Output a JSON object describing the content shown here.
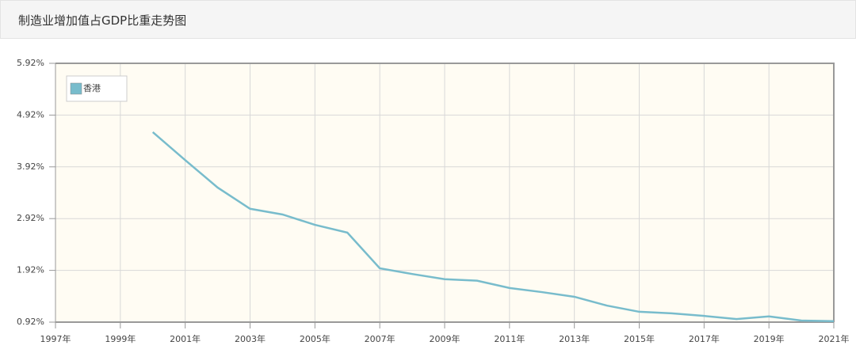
{
  "chart_data": {
    "type": "line",
    "title": "制造业增加值占GDP比重走势图",
    "x": [
      2000,
      2001,
      2002,
      2003,
      2004,
      2005,
      2006,
      2007,
      2008,
      2009,
      2010,
      2011,
      2012,
      2013,
      2014,
      2015,
      2016,
      2017,
      2018,
      2019,
      2020,
      2021
    ],
    "series": [
      {
        "name": "香港",
        "color": "#78bccc",
        "values": [
          4.59,
          4.05,
          3.52,
          3.11,
          3.0,
          2.8,
          2.65,
          1.96,
          1.85,
          1.75,
          1.72,
          1.58,
          1.5,
          1.41,
          1.24,
          1.12,
          1.09,
          1.04,
          0.98,
          1.03,
          0.95,
          0.94
        ]
      }
    ],
    "xlim": [
      1997,
      2021
    ],
    "xticks": [
      {
        "value": 1997,
        "label": "1997年"
      },
      {
        "value": 1999,
        "label": "1999年"
      },
      {
        "value": 2001,
        "label": "2001年"
      },
      {
        "value": 2003,
        "label": "2003年"
      },
      {
        "value": 2005,
        "label": "2005年"
      },
      {
        "value": 2007,
        "label": "2007年"
      },
      {
        "value": 2009,
        "label": "2009年"
      },
      {
        "value": 2011,
        "label": "2011年"
      },
      {
        "value": 2013,
        "label": "2013年"
      },
      {
        "value": 2015,
        "label": "2015年"
      },
      {
        "value": 2017,
        "label": "2017年"
      },
      {
        "value": 2019,
        "label": "2019年"
      },
      {
        "value": 2021,
        "label": "2021年"
      }
    ],
    "ylim": [
      0.92,
      5.92
    ],
    "yticks": [
      {
        "value": 0.92,
        "label": "0.92%"
      },
      {
        "value": 1.92,
        "label": "1.92%"
      },
      {
        "value": 2.92,
        "label": "2.92%"
      },
      {
        "value": 3.92,
        "label": "3.92%"
      },
      {
        "value": 4.92,
        "label": "4.92%"
      },
      {
        "value": 5.92,
        "label": "5.92%"
      }
    ],
    "grid": true,
    "legend": "top-left"
  }
}
